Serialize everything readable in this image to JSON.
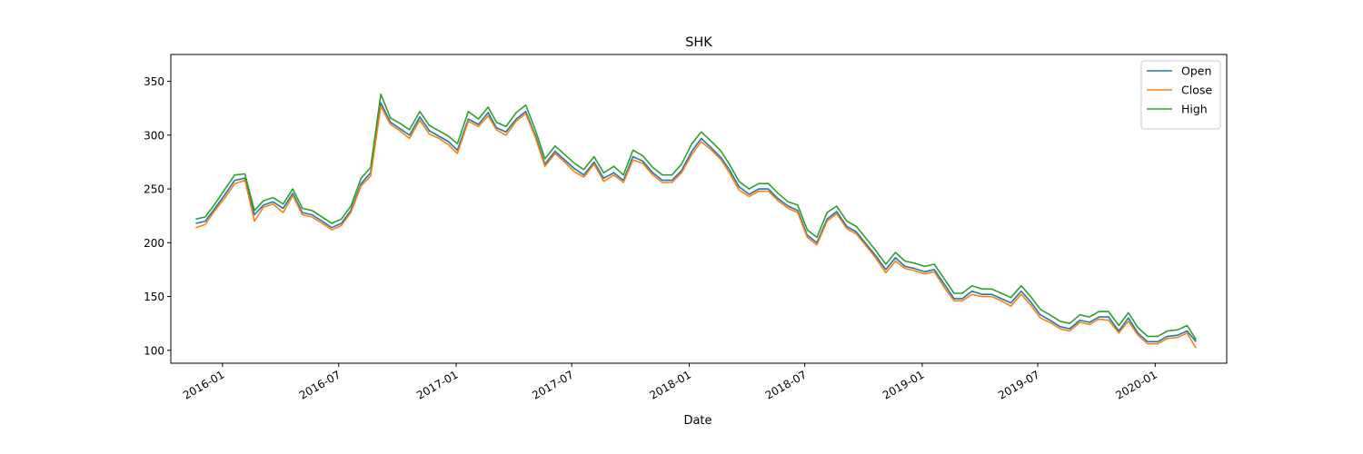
{
  "chart_data": {
    "type": "line",
    "title": "SHK",
    "xlabel": "Date",
    "ylabel": "",
    "ylim": [
      88,
      375
    ],
    "xlim": [
      "2015-10-12",
      "2020-04-22"
    ],
    "grid": false,
    "legend_position": "upper-right",
    "yticks": [
      100,
      150,
      200,
      250,
      300,
      350
    ],
    "xticks": [
      "2016-01",
      "2016-07",
      "2017-01",
      "2017-07",
      "2018-01",
      "2018-07",
      "2019-01",
      "2019-07",
      "2020-01"
    ],
    "series": [
      {
        "name": "Open",
        "color": "#1f77b4"
      },
      {
        "name": "Close",
        "color": "#ff7f0e"
      },
      {
        "name": "High",
        "color": "#2ca02c"
      }
    ],
    "x": [
      "2015-11-20",
      "2015-12-05",
      "2015-12-20",
      "2016-01-05",
      "2016-01-20",
      "2016-02-05",
      "2016-02-20",
      "2016-03-05",
      "2016-03-20",
      "2016-04-05",
      "2016-04-20",
      "2016-05-05",
      "2016-05-20",
      "2016-06-05",
      "2016-06-20",
      "2016-07-05",
      "2016-07-20",
      "2016-08-05",
      "2016-08-20",
      "2016-09-05",
      "2016-09-20",
      "2016-10-05",
      "2016-10-20",
      "2016-11-05",
      "2016-11-20",
      "2016-12-05",
      "2016-12-20",
      "2017-01-03",
      "2017-01-20",
      "2017-02-05",
      "2017-02-20",
      "2017-03-05",
      "2017-03-20",
      "2017-04-05",
      "2017-04-20",
      "2017-05-05",
      "2017-05-20",
      "2017-06-05",
      "2017-06-20",
      "2017-07-05",
      "2017-07-20",
      "2017-08-05",
      "2017-08-20",
      "2017-09-05",
      "2017-09-20",
      "2017-10-05",
      "2017-10-20",
      "2017-11-05",
      "2017-11-20",
      "2017-12-05",
      "2017-12-20",
      "2018-01-05",
      "2018-01-20",
      "2018-02-05",
      "2018-02-20",
      "2018-03-05",
      "2018-03-20",
      "2018-04-05",
      "2018-04-20",
      "2018-05-05",
      "2018-05-20",
      "2018-06-05",
      "2018-06-20",
      "2018-07-05",
      "2018-07-20",
      "2018-08-05",
      "2018-08-20",
      "2018-09-05",
      "2018-09-20",
      "2018-10-05",
      "2018-10-20",
      "2018-11-05",
      "2018-11-20",
      "2018-12-05",
      "2018-12-20",
      "2019-01-05",
      "2019-01-20",
      "2019-02-05",
      "2019-02-20",
      "2019-03-05",
      "2019-03-20",
      "2019-04-05",
      "2019-04-20",
      "2019-05-05",
      "2019-05-20",
      "2019-06-05",
      "2019-06-20",
      "2019-07-05",
      "2019-07-20",
      "2019-08-05",
      "2019-08-20",
      "2019-09-05",
      "2019-09-20",
      "2019-10-05",
      "2019-10-20",
      "2019-11-05",
      "2019-11-20",
      "2019-12-05",
      "2019-12-20",
      "2020-01-05",
      "2020-01-20",
      "2020-02-05",
      "2020-02-20",
      "2020-03-05"
    ],
    "values": {
      "Open": [
        218,
        220,
        232,
        245,
        258,
        260,
        226,
        235,
        238,
        232,
        246,
        228,
        226,
        220,
        214,
        218,
        230,
        255,
        265,
        330,
        312,
        306,
        300,
        317,
        304,
        299,
        294,
        286,
        315,
        310,
        321,
        307,
        303,
        315,
        322,
        300,
        273,
        285,
        277,
        269,
        263,
        275,
        260,
        265,
        258,
        280,
        276,
        265,
        258,
        258,
        267,
        285,
        297,
        288,
        279,
        268,
        252,
        245,
        250,
        250,
        241,
        234,
        230,
        207,
        200,
        222,
        229,
        215,
        210,
        199,
        188,
        175,
        186,
        178,
        176,
        173,
        175,
        161,
        148,
        148,
        155,
        152,
        152,
        148,
        144,
        155,
        145,
        133,
        128,
        122,
        120,
        128,
        126,
        131,
        131,
        118,
        130,
        116,
        108,
        108,
        113,
        114,
        118,
        108
      ],
      "Close": [
        214,
        217,
        230,
        242,
        255,
        258,
        220,
        233,
        236,
        228,
        244,
        226,
        224,
        218,
        212,
        216,
        228,
        253,
        262,
        327,
        310,
        304,
        297,
        314,
        301,
        297,
        291,
        283,
        313,
        308,
        318,
        305,
        300,
        313,
        320,
        298,
        271,
        283,
        275,
        266,
        261,
        273,
        257,
        263,
        256,
        277,
        274,
        263,
        256,
        256,
        265,
        282,
        294,
        286,
        277,
        265,
        249,
        243,
        248,
        248,
        239,
        232,
        228,
        205,
        198,
        220,
        227,
        213,
        208,
        197,
        186,
        172,
        183,
        176,
        174,
        171,
        173,
        158,
        146,
        146,
        152,
        150,
        150,
        146,
        141,
        152,
        142,
        130,
        126,
        120,
        118,
        126,
        124,
        129,
        128,
        116,
        127,
        114,
        106,
        106,
        111,
        112,
        116,
        102
      ],
      "High": [
        222,
        224,
        236,
        250,
        263,
        264,
        230,
        239,
        242,
        236,
        250,
        232,
        230,
        224,
        218,
        222,
        234,
        260,
        270,
        338,
        316,
        311,
        305,
        322,
        309,
        304,
        299,
        292,
        322,
        315,
        326,
        312,
        308,
        321,
        328,
        305,
        278,
        290,
        282,
        274,
        268,
        280,
        265,
        271,
        263,
        286,
        281,
        270,
        263,
        263,
        273,
        292,
        303,
        294,
        285,
        273,
        257,
        250,
        255,
        255,
        246,
        238,
        235,
        212,
        205,
        228,
        234,
        220,
        215,
        204,
        193,
        180,
        191,
        183,
        181,
        178,
        180,
        166,
        153,
        153,
        160,
        157,
        157,
        153,
        149,
        160,
        150,
        138,
        133,
        127,
        125,
        133,
        131,
        136,
        136,
        123,
        135,
        121,
        113,
        113,
        118,
        119,
        123,
        110
      ]
    }
  }
}
